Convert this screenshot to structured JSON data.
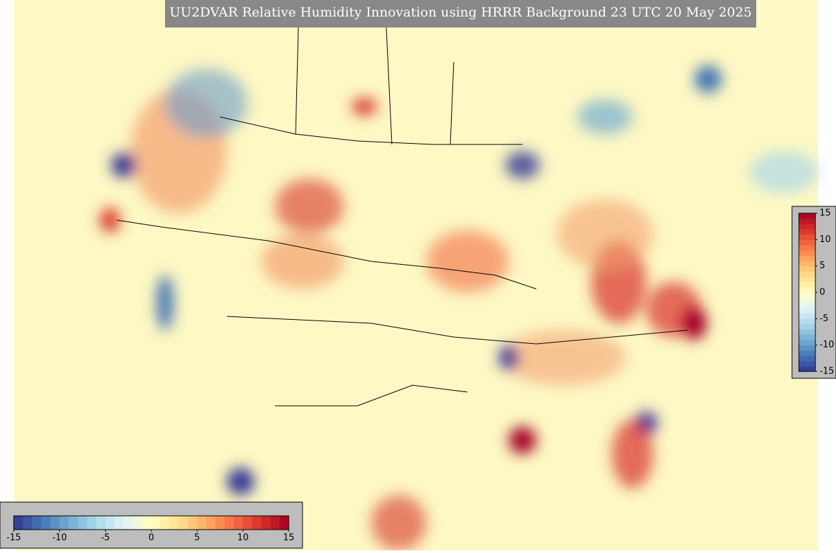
{
  "title": "UU2DVAR Relative Humidity Innovation using HRRR Background 23 UTC 20 May 2025",
  "colorbar": {
    "range": [
      -15,
      15
    ],
    "ticks": [
      -15,
      -10,
      -5,
      0,
      5,
      10,
      15
    ],
    "colors": [
      "#313695",
      "#4575b4",
      "#74add1",
      "#abd9e9",
      "#e0f3f8",
      "#ffffbf",
      "#fee090",
      "#fdae61",
      "#f46d43",
      "#d73027",
      "#a50026"
    ]
  }
}
